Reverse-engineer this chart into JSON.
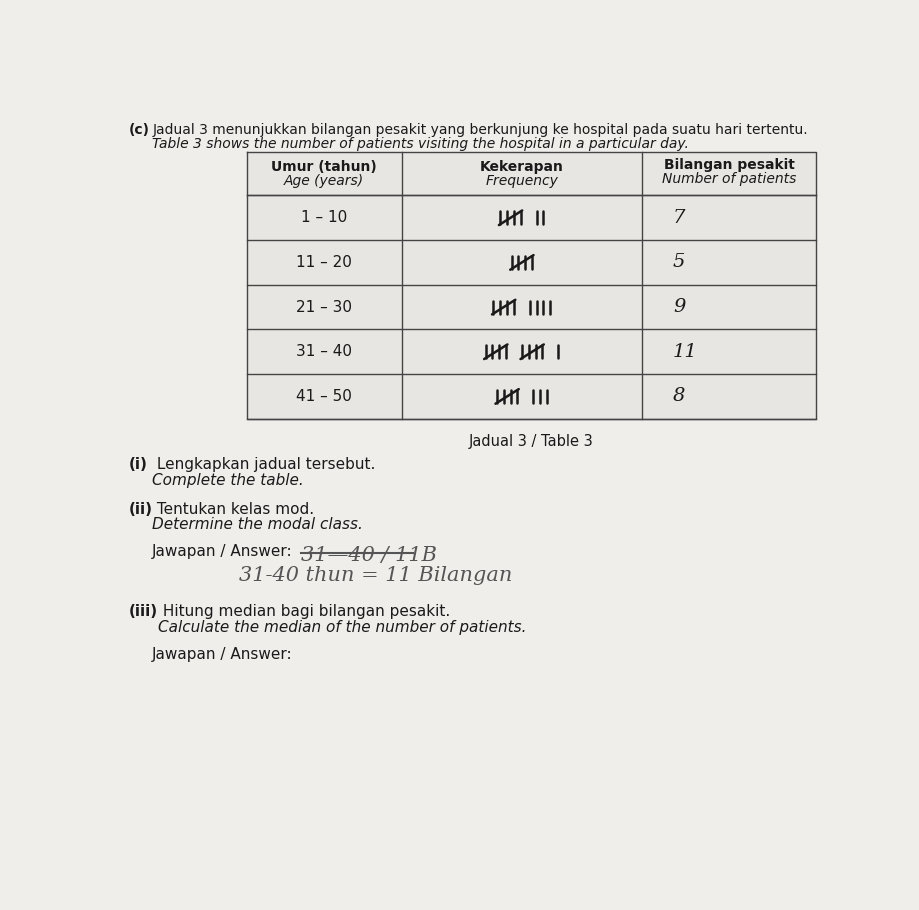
{
  "bg_color": "#f0eeeb",
  "title_prefix": "(c)  ",
  "title_line1": "Jadual 3 menunjukkan bilangan pesakit yang berkunjung ke hospital pada suatu hari tertentu.",
  "title_line2": "Table 3 shows the number of patients visiting the hospital in a particular day.",
  "col1_header_line1": "Umur (tahun)",
  "col1_header_line2": "Age (years)",
  "col2_header_line1": "Kekerapan",
  "col2_header_line2": "Frequency",
  "col3_header_line1": "Bilangan pesakit",
  "col3_header_line2": "Number of patients",
  "ages": [
    "1 – 10",
    "11 – 20",
    "21 – 30",
    "31 – 40",
    "41 – 50"
  ],
  "counts": [
    7,
    5,
    9,
    11,
    8
  ],
  "numbers": [
    "7",
    "5",
    "9",
    "11",
    "8"
  ],
  "caption": "Jadual 3 / Table 3",
  "part_i_bold": "(i)",
  "part_i_text": "  Lengkapkan jadual tersebut.",
  "part_i_italic": "Complete the table.",
  "part_ii_bold": "(ii)",
  "part_ii_text": "  Tentukan kelas mod.",
  "part_ii_italic": "Determine the modal class.",
  "jawapan_label": "Jawapan / Answer:",
  "answer_struck": "31—40 / 11B",
  "answer_line2": "31-40 thun = 11 Bilangan",
  "part_iii_bold": "(iii)",
  "part_iii_text": " Hitung median bagi bilangan pesakit.",
  "part_iii_italic": "Calculate the median of the number of patients.",
  "jawapan_iii": "Jawapan / Answer:",
  "text_color": "#1a1a1a",
  "table_line_color": "#444444",
  "handwrite_color": "#555555"
}
